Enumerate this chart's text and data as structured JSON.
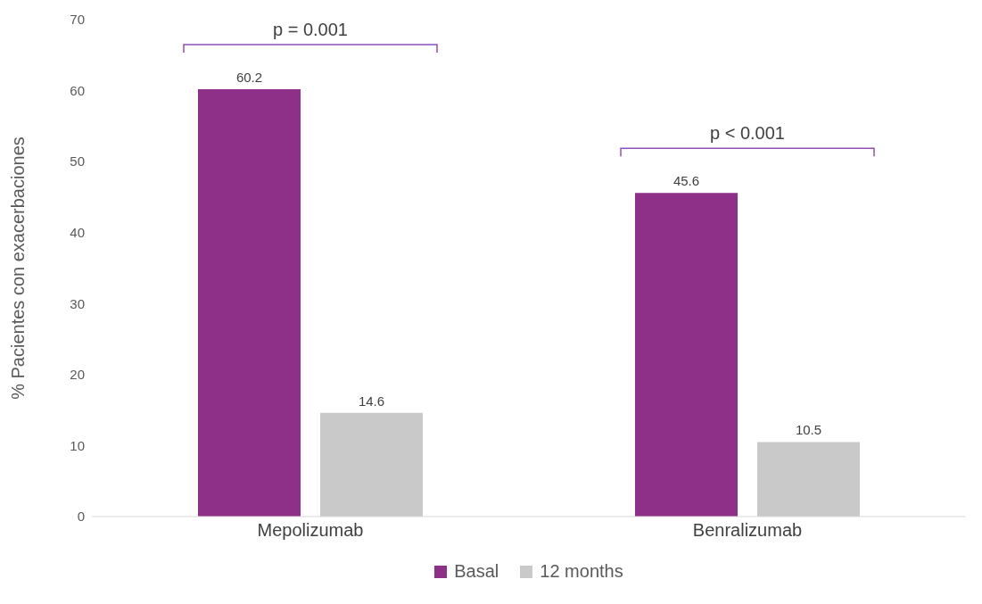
{
  "chart_data": {
    "type": "bar",
    "ylabel": "% Pacientes con exacerbaciones",
    "categories": [
      "Mepolizumab",
      "Benralizumab"
    ],
    "series": [
      {
        "name": "Basal",
        "color": "#8e3087",
        "values": [
          60.2,
          45.6
        ]
      },
      {
        "name": "12 months",
        "color": "#c9c9c9",
        "values": [
          14.6,
          10.5
        ]
      }
    ],
    "ylim": [
      0,
      70
    ],
    "yticks": [
      0,
      10,
      20,
      30,
      40,
      50,
      60,
      70
    ],
    "grid": false,
    "legend": "bottom",
    "data_labels": true,
    "annotations": [
      "p = 0.001",
      "p < 0.001"
    ]
  }
}
